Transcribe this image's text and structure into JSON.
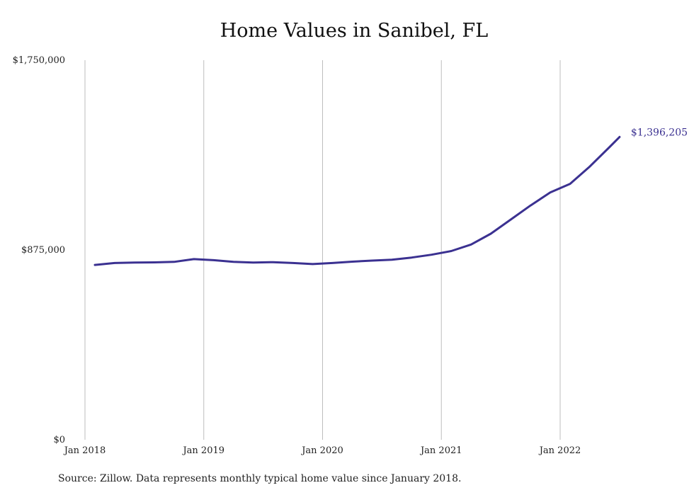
{
  "chart_data": {
    "type": "line",
    "title": "Home Values in Sanibel, FL",
    "xlabel": "",
    "ylabel": "",
    "x_tick_labels": [
      "Jan 2018",
      "Jan 2019",
      "Jan 2020",
      "Jan 2021",
      "Jan 2022"
    ],
    "y_tick_labels": [
      "$0",
      "$875,000",
      "$1,750,000"
    ],
    "ylim": [
      0,
      1750000
    ],
    "xlim": [
      "2018-01",
      "2022-08"
    ],
    "grid": "vertical",
    "line_color": "#3b3191",
    "series": [
      {
        "name": "",
        "points": [
          [
            "2018-02",
            806000
          ],
          [
            "2018-04",
            815000
          ],
          [
            "2018-06",
            817000
          ],
          [
            "2018-08",
            818000
          ],
          [
            "2018-10",
            820000
          ],
          [
            "2018-12",
            833000
          ],
          [
            "2019-02",
            828000
          ],
          [
            "2019-04",
            820000
          ],
          [
            "2019-06",
            817000
          ],
          [
            "2019-08",
            819000
          ],
          [
            "2019-10",
            815000
          ],
          [
            "2019-12",
            810000
          ],
          [
            "2020-02",
            815000
          ],
          [
            "2020-04",
            821000
          ],
          [
            "2020-06",
            826000
          ],
          [
            "2020-08",
            830000
          ],
          [
            "2020-10",
            840000
          ],
          [
            "2020-12",
            853000
          ],
          [
            "2021-02",
            870000
          ],
          [
            "2021-04",
            900000
          ],
          [
            "2021-06",
            950000
          ],
          [
            "2021-08",
            1015000
          ],
          [
            "2021-10",
            1080000
          ],
          [
            "2021-12",
            1140000
          ],
          [
            "2022-02",
            1180000
          ],
          [
            "2022-04",
            1260000
          ],
          [
            "2022-06",
            1350000
          ],
          [
            "2022-07",
            1396205
          ]
        ]
      }
    ],
    "end_label": "$1,396,205"
  },
  "source": "Source: Zillow. Data represents monthly typical home value since January 2018."
}
